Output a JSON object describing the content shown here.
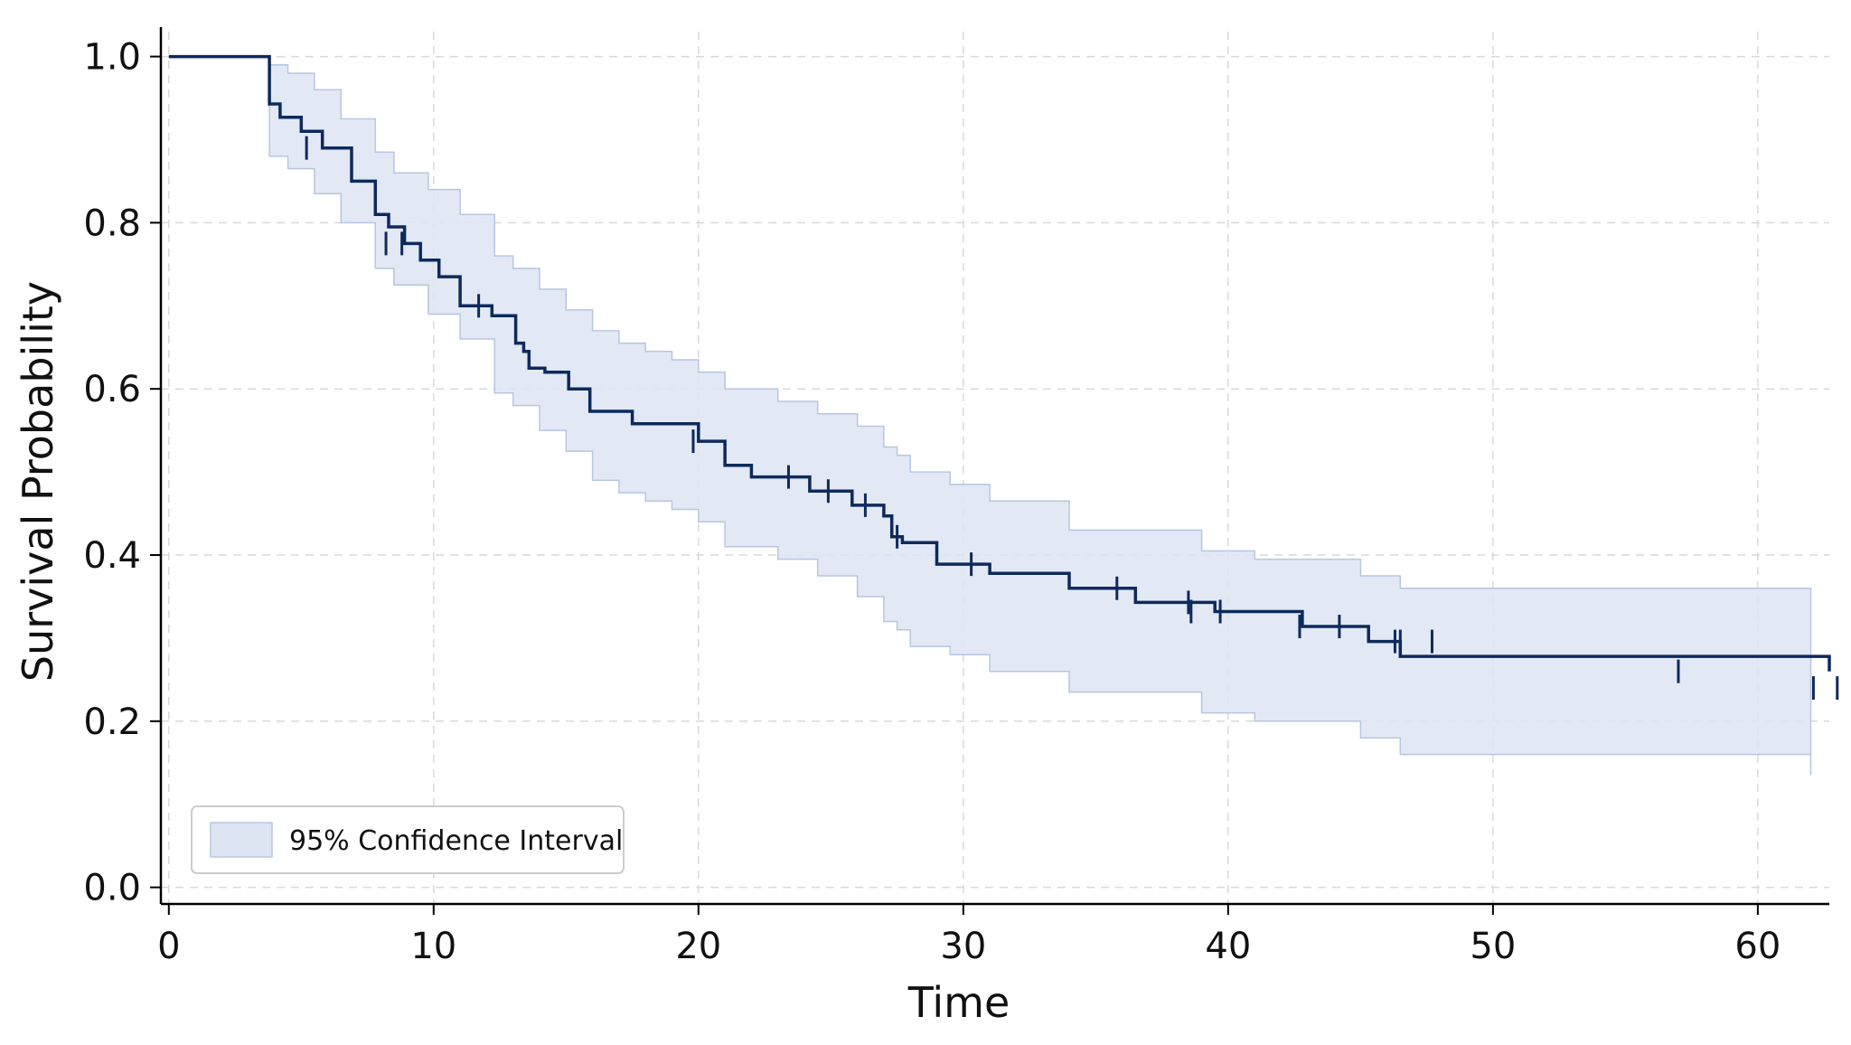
{
  "chart_data": {
    "type": "line",
    "subtype": "kaplan-meier-step",
    "title": "",
    "xlabel": "Time",
    "ylabel": "Survival Probability",
    "xlim": [
      -0.3,
      62.7
    ],
    "ylim": [
      -0.02,
      1.03
    ],
    "x_ticks": [
      0,
      10,
      20,
      30,
      40,
      50,
      60
    ],
    "y_ticks": [
      0.0,
      0.2,
      0.4,
      0.6,
      0.8,
      1.0
    ],
    "x_tick_labels": [
      "0",
      "10",
      "20",
      "30",
      "40",
      "50",
      "60"
    ],
    "y_tick_labels": [
      "0.0",
      "0.2",
      "0.4",
      "0.6",
      "0.8",
      "1.0"
    ],
    "grid": true,
    "legend": {
      "placement": "bottom-left",
      "entries": [
        "95% Confidence Interval"
      ]
    },
    "colors": {
      "line": "#0d2a5c",
      "band_fill": "#dde5f3",
      "band_edge": "#b8c6e2",
      "grid": "#d9d9d9",
      "axis": "#000000"
    },
    "series": [
      {
        "role": "survival",
        "x": [
          0,
          3.8,
          4.2,
          5.0,
          5.8,
          6.9,
          7.8,
          8.3,
          8.9,
          9.5,
          10.2,
          11.0,
          12.2,
          13.1,
          13.4,
          13.6,
          14.2,
          15.1,
          15.9,
          17.5,
          20.0,
          21.0,
          22.0,
          24.2,
          25.8,
          27.0,
          27.3,
          27.7,
          29.0,
          31.0,
          34.0,
          36.5,
          39.5,
          42.8,
          45.3,
          46.5,
          62.7
        ],
        "y": [
          1.0,
          0.943,
          0.927,
          0.91,
          0.89,
          0.85,
          0.81,
          0.795,
          0.775,
          0.755,
          0.735,
          0.7,
          0.688,
          0.655,
          0.645,
          0.625,
          0.62,
          0.6,
          0.573,
          0.558,
          0.537,
          0.508,
          0.494,
          0.477,
          0.46,
          0.447,
          0.422,
          0.415,
          0.389,
          0.378,
          0.36,
          0.343,
          0.332,
          0.314,
          0.296,
          0.278,
          0.26
        ]
      },
      {
        "role": "ci_upper",
        "x": [
          0,
          3.8,
          4.5,
          5.5,
          6.5,
          7.8,
          8.5,
          9.8,
          11.0,
          12.3,
          13.0,
          14.0,
          15.0,
          16.0,
          17.0,
          18.0,
          19.0,
          20.0,
          21.0,
          23.0,
          24.5,
          26.0,
          27.0,
          27.5,
          28.0,
          29.5,
          31.0,
          34.0,
          39.0,
          41.0,
          45.0,
          46.5,
          62.0
        ],
        "y": [
          1.0,
          0.99,
          0.98,
          0.96,
          0.925,
          0.885,
          0.86,
          0.84,
          0.81,
          0.76,
          0.745,
          0.72,
          0.695,
          0.67,
          0.655,
          0.645,
          0.635,
          0.62,
          0.6,
          0.585,
          0.57,
          0.555,
          0.53,
          0.52,
          0.5,
          0.485,
          0.465,
          0.43,
          0.405,
          0.395,
          0.375,
          0.36,
          0.36
        ]
      },
      {
        "role": "ci_lower",
        "x": [
          0,
          3.8,
          4.5,
          5.5,
          6.5,
          7.8,
          8.5,
          9.8,
          11.0,
          12.3,
          13.0,
          14.0,
          15.0,
          16.0,
          17.0,
          18.0,
          19.0,
          20.0,
          21.0,
          23.0,
          24.5,
          26.0,
          27.0,
          27.5,
          28.0,
          29.5,
          31.0,
          34.0,
          39.0,
          41.0,
          45.0,
          46.5,
          62.0
        ],
        "y": [
          1.0,
          0.88,
          0.865,
          0.835,
          0.8,
          0.745,
          0.725,
          0.69,
          0.66,
          0.595,
          0.58,
          0.55,
          0.525,
          0.49,
          0.475,
          0.465,
          0.455,
          0.44,
          0.41,
          0.395,
          0.375,
          0.35,
          0.32,
          0.31,
          0.29,
          0.28,
          0.26,
          0.235,
          0.21,
          0.2,
          0.18,
          0.16,
          0.135
        ]
      }
    ],
    "censor_marks": [
      {
        "x": 5.2,
        "y": 0.89
      },
      {
        "x": 8.2,
        "y": 0.775
      },
      {
        "x": 8.8,
        "y": 0.775
      },
      {
        "x": 11.7,
        "y": 0.7
      },
      {
        "x": 19.8,
        "y": 0.537
      },
      {
        "x": 23.4,
        "y": 0.494
      },
      {
        "x": 24.9,
        "y": 0.477
      },
      {
        "x": 26.3,
        "y": 0.46
      },
      {
        "x": 27.5,
        "y": 0.422
      },
      {
        "x": 30.3,
        "y": 0.389
      },
      {
        "x": 35.8,
        "y": 0.36
      },
      {
        "x": 38.5,
        "y": 0.343
      },
      {
        "x": 38.6,
        "y": 0.332
      },
      {
        "x": 39.7,
        "y": 0.332
      },
      {
        "x": 42.7,
        "y": 0.314
      },
      {
        "x": 44.2,
        "y": 0.314
      },
      {
        "x": 46.3,
        "y": 0.296
      },
      {
        "x": 46.5,
        "y": 0.296
      },
      {
        "x": 47.7,
        "y": 0.296
      },
      {
        "x": 57.0,
        "y": 0.26
      },
      {
        "x": 62.1,
        "y": 0.24
      },
      {
        "x": 63.0,
        "y": 0.24
      }
    ]
  }
}
